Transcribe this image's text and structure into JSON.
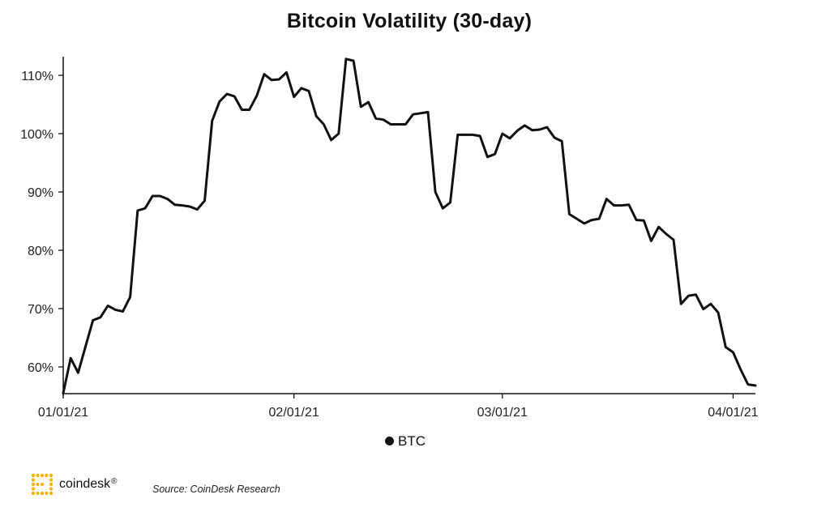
{
  "brand": {
    "name": "coindesk",
    "registered_mark": "®",
    "accent_color": "#F5B100"
  },
  "source": "Source: CoinDesk Research",
  "chart_data": {
    "type": "line",
    "title": "Bitcoin Volatility (30-day)",
    "xlabel": "",
    "ylabel": "",
    "x_range": [
      "2021-01-01",
      "2021-04-04"
    ],
    "ylim": [
      55,
      113
    ],
    "y_ticks": [
      60,
      70,
      80,
      90,
      100,
      110
    ],
    "y_tick_labels": [
      "60%",
      "70%",
      "80%",
      "90%",
      "100%",
      "110%"
    ],
    "x_ticks": [
      "2021-01-01",
      "2021-02-01",
      "2021-03-01",
      "2021-04-01"
    ],
    "x_tick_labels": [
      "01/01/21",
      "02/01/21",
      "03/01/21",
      "04/01/21"
    ],
    "grid": false,
    "legend": {
      "position": "bottom-center",
      "entries": [
        "BTC"
      ]
    },
    "line_color": "#111111",
    "series": [
      {
        "name": "BTC",
        "points": [
          [
            "2021-01-01",
            55.5
          ],
          [
            "2021-01-02",
            61.5
          ],
          [
            "2021-01-03",
            59.0
          ],
          [
            "2021-01-04",
            63.5
          ],
          [
            "2021-01-05",
            68.0
          ],
          [
            "2021-01-06",
            68.5
          ],
          [
            "2021-01-07",
            70.5
          ],
          [
            "2021-01-08",
            69.8
          ],
          [
            "2021-01-09",
            69.5
          ],
          [
            "2021-01-10",
            72.0
          ],
          [
            "2021-01-11",
            86.8
          ],
          [
            "2021-01-12",
            87.2
          ],
          [
            "2021-01-13",
            89.3
          ],
          [
            "2021-01-14",
            89.3
          ],
          [
            "2021-01-15",
            88.8
          ],
          [
            "2021-01-16",
            87.8
          ],
          [
            "2021-01-17",
            87.7
          ],
          [
            "2021-01-18",
            87.5
          ],
          [
            "2021-01-19",
            87.0
          ],
          [
            "2021-01-20",
            88.5
          ],
          [
            "2021-01-21",
            102.2
          ],
          [
            "2021-01-22",
            105.5
          ],
          [
            "2021-01-23",
            106.8
          ],
          [
            "2021-01-24",
            106.4
          ],
          [
            "2021-01-25",
            104.1
          ],
          [
            "2021-01-26",
            104.1
          ],
          [
            "2021-01-27",
            106.5
          ],
          [
            "2021-01-28",
            110.2
          ],
          [
            "2021-01-29",
            109.2
          ],
          [
            "2021-01-30",
            109.3
          ],
          [
            "2021-01-31",
            110.5
          ],
          [
            "2021-02-01",
            106.3
          ],
          [
            "2021-02-02",
            107.8
          ],
          [
            "2021-02-03",
            107.3
          ],
          [
            "2021-02-04",
            103.0
          ],
          [
            "2021-02-05",
            101.6
          ],
          [
            "2021-02-06",
            98.9
          ],
          [
            "2021-02-07",
            100.0
          ],
          [
            "2021-02-08",
            112.8
          ],
          [
            "2021-02-09",
            112.5
          ],
          [
            "2021-02-10",
            104.6
          ],
          [
            "2021-02-11",
            105.4
          ],
          [
            "2021-02-12",
            102.6
          ],
          [
            "2021-02-13",
            102.4
          ],
          [
            "2021-02-14",
            101.6
          ],
          [
            "2021-02-15",
            101.6
          ],
          [
            "2021-02-16",
            101.6
          ],
          [
            "2021-02-17",
            103.3
          ],
          [
            "2021-02-18",
            103.5
          ],
          [
            "2021-02-19",
            103.7
          ],
          [
            "2021-02-20",
            90.0
          ],
          [
            "2021-02-21",
            87.2
          ],
          [
            "2021-02-22",
            88.2
          ],
          [
            "2021-02-23",
            99.8
          ],
          [
            "2021-02-24",
            99.8
          ],
          [
            "2021-02-25",
            99.8
          ],
          [
            "2021-02-26",
            99.6
          ],
          [
            "2021-02-27",
            96.0
          ],
          [
            "2021-02-28",
            96.5
          ],
          [
            "2021-03-01",
            100.0
          ],
          [
            "2021-03-02",
            99.2
          ],
          [
            "2021-03-03",
            100.5
          ],
          [
            "2021-03-04",
            101.4
          ],
          [
            "2021-03-05",
            100.6
          ],
          [
            "2021-03-06",
            100.7
          ],
          [
            "2021-03-07",
            101.1
          ],
          [
            "2021-03-08",
            99.3
          ],
          [
            "2021-03-09",
            98.7
          ],
          [
            "2021-03-10",
            86.2
          ],
          [
            "2021-03-11",
            85.4
          ],
          [
            "2021-03-12",
            84.6
          ],
          [
            "2021-03-13",
            85.2
          ],
          [
            "2021-03-14",
            85.4
          ],
          [
            "2021-03-15",
            88.8
          ],
          [
            "2021-03-16",
            87.7
          ],
          [
            "2021-03-17",
            87.7
          ],
          [
            "2021-03-18",
            87.8
          ],
          [
            "2021-03-19",
            85.2
          ],
          [
            "2021-03-20",
            85.1
          ],
          [
            "2021-03-21",
            81.6
          ],
          [
            "2021-03-22",
            84.0
          ],
          [
            "2021-03-23",
            82.8
          ],
          [
            "2021-03-24",
            81.8
          ],
          [
            "2021-03-25",
            70.8
          ],
          [
            "2021-03-26",
            72.2
          ],
          [
            "2021-03-27",
            72.4
          ],
          [
            "2021-03-28",
            69.9
          ],
          [
            "2021-03-29",
            70.8
          ],
          [
            "2021-03-30",
            69.3
          ],
          [
            "2021-03-31",
            63.4
          ],
          [
            "2021-04-01",
            62.5
          ],
          [
            "2021-04-02",
            59.6
          ],
          [
            "2021-04-03",
            57.0
          ],
          [
            "2021-04-04",
            56.8
          ]
        ]
      }
    ]
  }
}
